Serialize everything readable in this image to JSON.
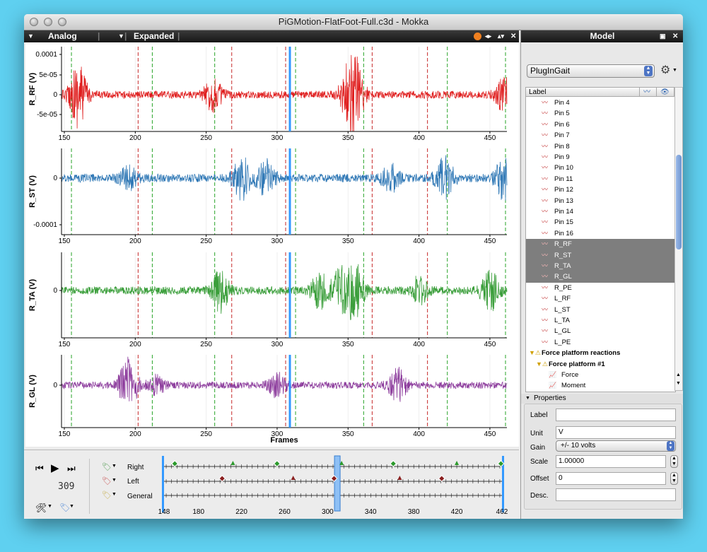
{
  "window": {
    "title": "PiGMotion-FlatFoot-Full.c3d - Mokka"
  },
  "toolbar": {
    "analog_label": "Analog",
    "expanded_label": "Expanded"
  },
  "x_axis": {
    "ticks": [
      "150",
      "200",
      "250",
      "300",
      "350",
      "400",
      "450"
    ],
    "label": "Frames"
  },
  "plots": [
    {
      "ylabel": "R_RF (V)",
      "yticks": [
        "0.0001",
        "5e-05",
        "0",
        "-5e-05"
      ],
      "color": "#e02020"
    },
    {
      "ylabel": "R_ST (V)",
      "yticks": [
        "0",
        "-0.0001"
      ],
      "color": "#2e77b5"
    },
    {
      "ylabel": "R_TA (V)",
      "yticks": [
        "0"
      ],
      "color": "#3a9e3a"
    },
    {
      "ylabel": "R_GL (V)",
      "yticks": [
        "0"
      ],
      "color": "#8e3f9e"
    }
  ],
  "chart_data": {
    "type": "line",
    "x_range": [
      148,
      462
    ],
    "current_frame": 309,
    "events": {
      "right_foot_strike_green": [
        155,
        212,
        256,
        313,
        361,
        420,
        461
      ],
      "left_foot_strike_red": [
        202,
        268,
        306,
        367,
        406
      ]
    },
    "series": [
      {
        "name": "R_RF (V)"
      },
      {
        "name": "R_ST (V)"
      },
      {
        "name": "R_TA (V)"
      },
      {
        "name": "R_GL (V)"
      }
    ],
    "note_colors": {
      "green_event": "#27a327",
      "red_event": "#c62828",
      "cursor": "#3399ff"
    }
  },
  "player": {
    "frame": "309"
  },
  "timeline": {
    "rows": [
      "Right",
      "Left",
      "General"
    ],
    "ticks": [
      "148",
      "180",
      "220",
      "260",
      "300",
      "340",
      "380",
      "420",
      "462"
    ]
  },
  "model": {
    "title": "Model",
    "selector": "PlugInGait",
    "tree_header": "Label",
    "items": [
      "Pin 4",
      "Pin 5",
      "Pin 6",
      "Pin 7",
      "Pin 8",
      "Pin 9",
      "Pin 10",
      "Pin 11",
      "Pin 12",
      "Pin 13",
      "Pin 14",
      "Pin 15",
      "Pin 16",
      "R_RF",
      "R_ST",
      "R_TA",
      "R_GL",
      "R_PE",
      "L_RF",
      "L_ST",
      "L_TA",
      "L_GL",
      "L_PE"
    ],
    "group": "Force platform reactions",
    "subgroup": "Force platform #1",
    "sub_items": [
      "Force",
      "Moment"
    ]
  },
  "properties": {
    "title": "Properties",
    "label_caption": "Label",
    "label_value": "",
    "unit_caption": "Unit",
    "unit_value": "V",
    "gain_caption": "Gain",
    "gain_value": "+/- 10 volts",
    "scale_caption": "Scale",
    "scale_value": "1.00000",
    "offset_caption": "Offset",
    "offset_value": "0",
    "desc_caption": "Desc.",
    "desc_value": ""
  }
}
